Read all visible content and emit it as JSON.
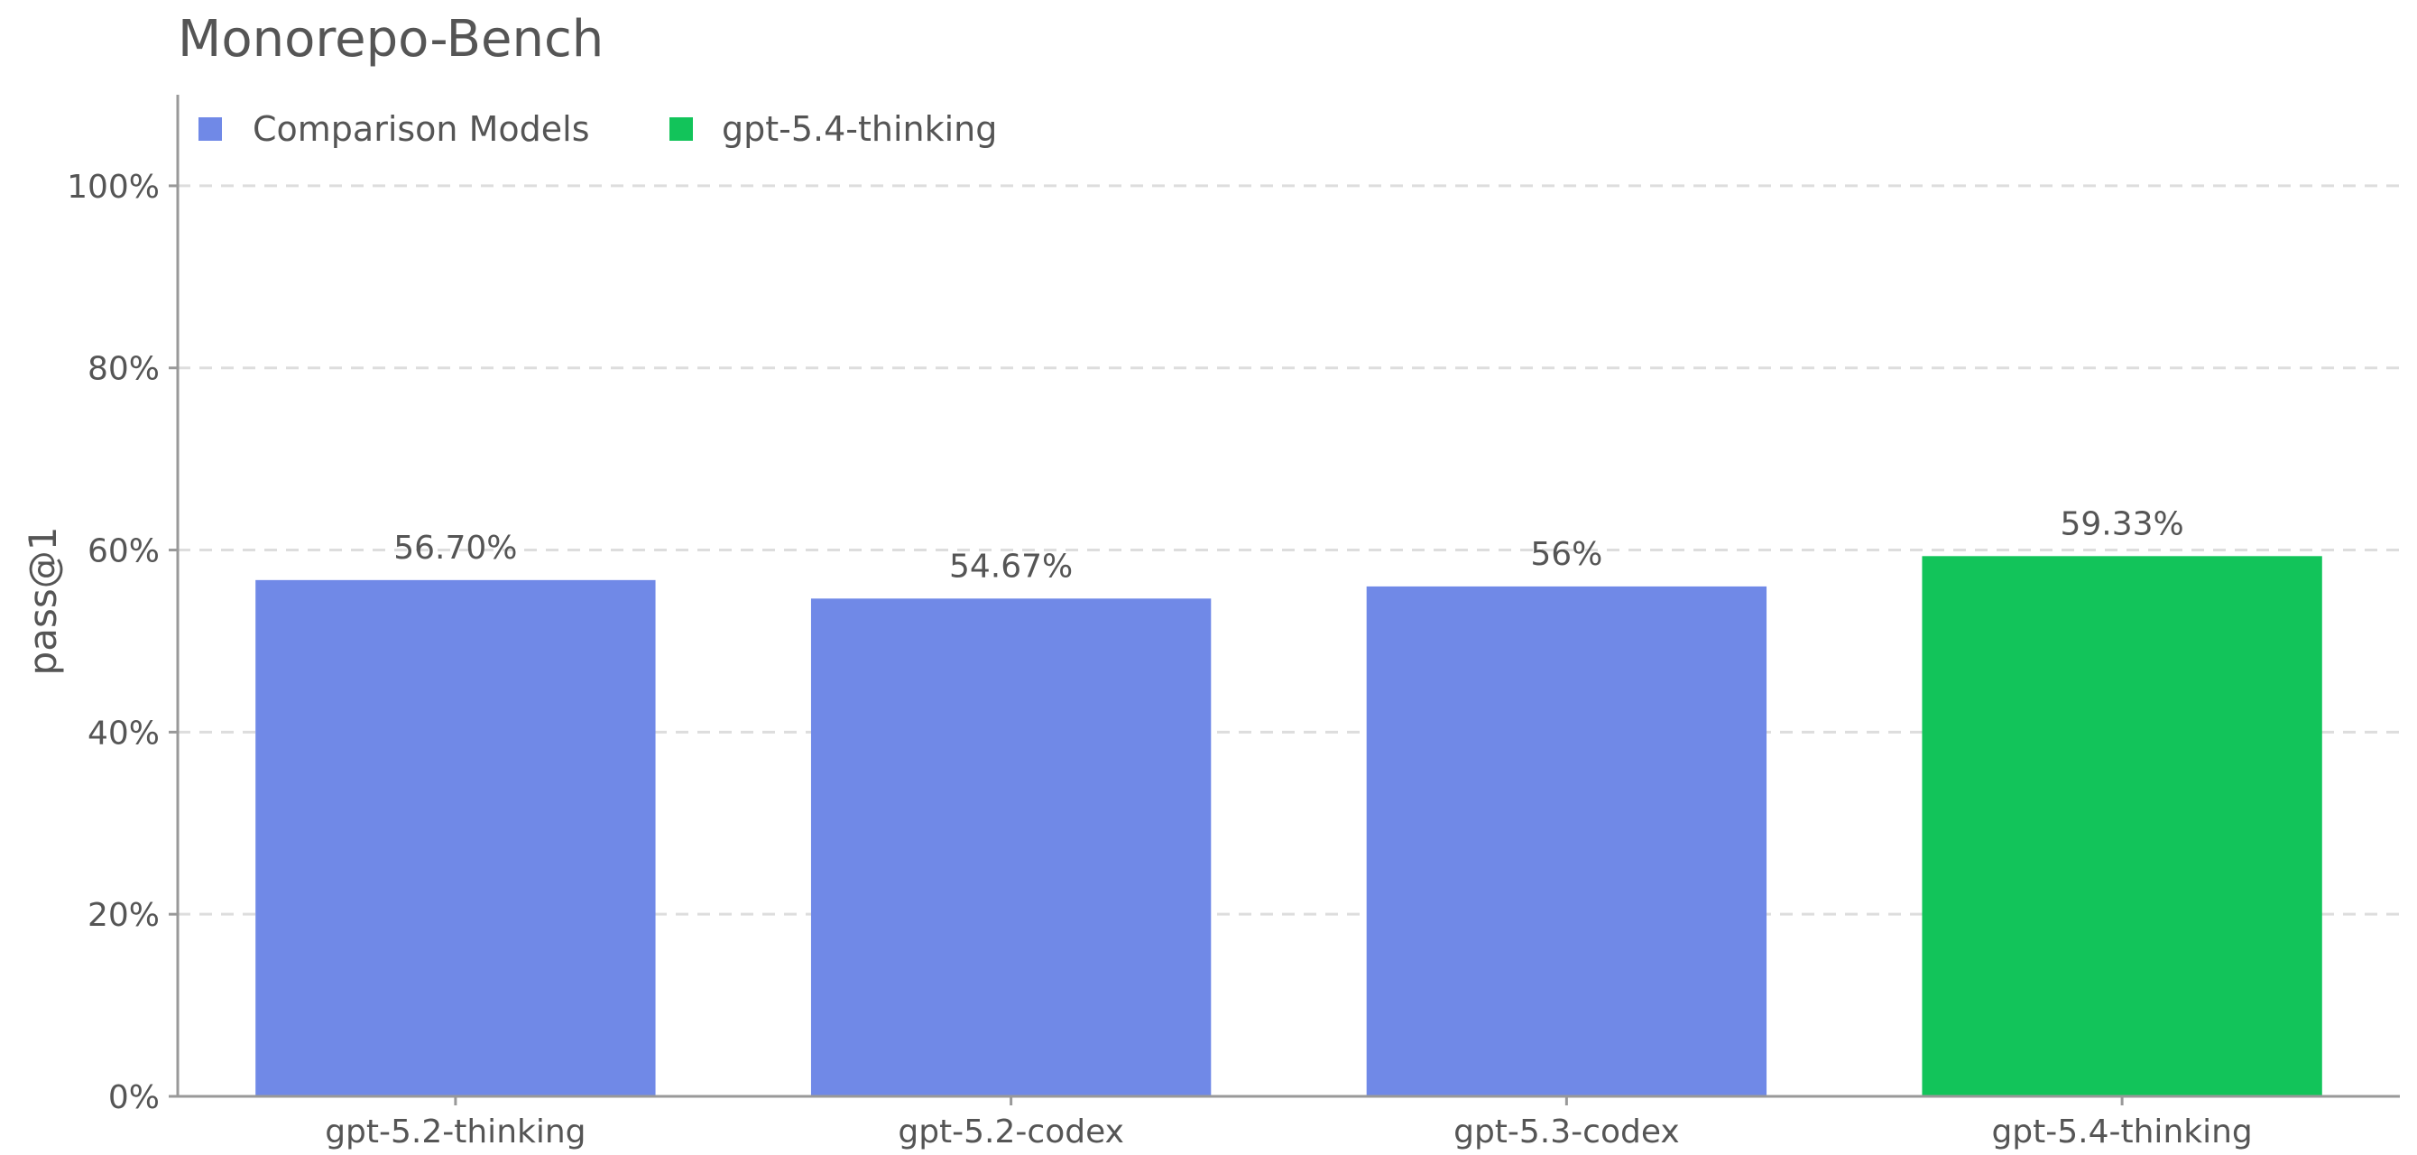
{
  "chart_data": {
    "type": "bar",
    "title": "Monorepo-Bench",
    "xlabel": "",
    "ylabel": "pass@1",
    "categories": [
      "gpt-5.2-thinking",
      "gpt-5.2-codex",
      "gpt-5.3-codex",
      "gpt-5.4-thinking"
    ],
    "values": [
      56.7,
      54.67,
      56.0,
      59.33
    ],
    "data_labels": [
      "56.70%",
      "54.67%",
      "56%",
      "59.33%"
    ],
    "bar_groups": [
      "Comparison Models",
      "Comparison Models",
      "Comparison Models",
      "gpt-5.4-thinking"
    ],
    "ylim": [
      0,
      110
    ],
    "yticks": [
      0,
      20,
      40,
      60,
      80,
      100
    ],
    "ytick_labels": [
      "0%",
      "20%",
      "40%",
      "60%",
      "80%",
      "100%"
    ],
    "grid": true,
    "legend": {
      "placement": "top-left",
      "entries": [
        {
          "label": "Comparison Models",
          "color": "#7089E7"
        },
        {
          "label": "gpt-5.4-thinking",
          "color": "#12C45A"
        }
      ]
    },
    "colors": {
      "Comparison Models": "#7089E7",
      "gpt-5.4-thinking": "#12C45A"
    }
  }
}
